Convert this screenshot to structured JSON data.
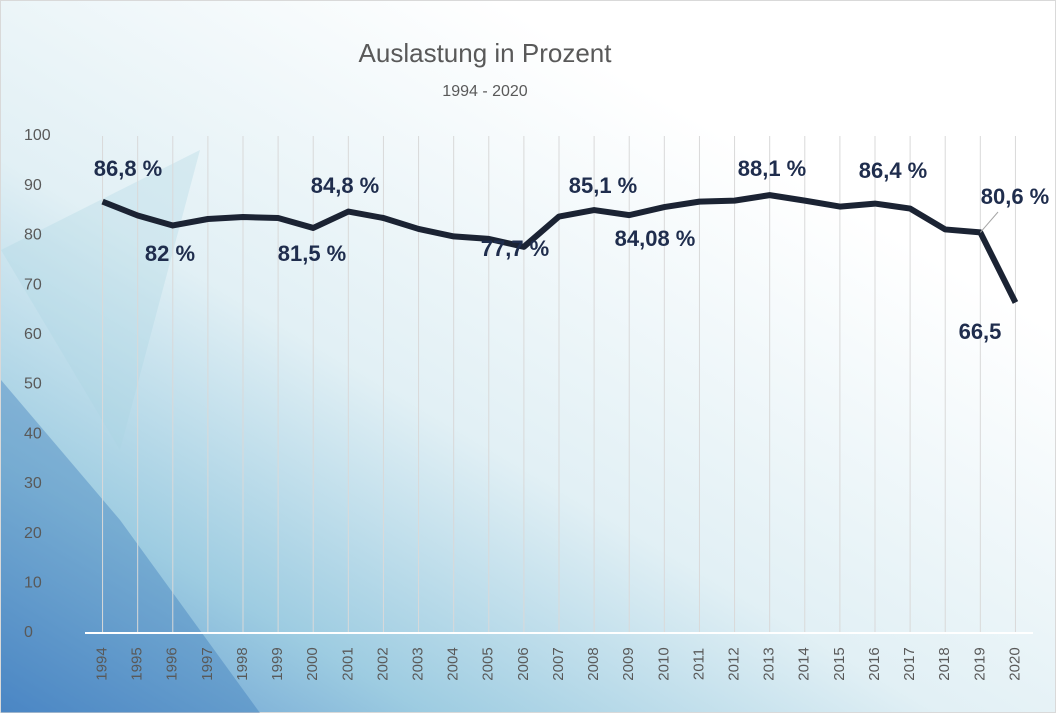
{
  "chart_data": {
    "type": "line",
    "title": "Auslastung in Prozent",
    "subtitle": "1994 - 2020",
    "categories": [
      "1994",
      "1995",
      "1996",
      "1997",
      "1998",
      "1999",
      "2000",
      "2001",
      "2002",
      "2003",
      "2004",
      "2005",
      "2006",
      "2007",
      "2008",
      "2009",
      "2010",
      "2011",
      "2012",
      "2013",
      "2014",
      "2015",
      "2016",
      "2017",
      "2018",
      "2019",
      "2020"
    ],
    "values": [
      86.8,
      84,
      82,
      83.3,
      83.7,
      83.5,
      81.5,
      84.8,
      83.5,
      81.3,
      79.8,
      79.3,
      77.7,
      83.8,
      85.1,
      84.08,
      85.7,
      86.8,
      87,
      88.1,
      87,
      85.8,
      86.4,
      85.4,
      81.2,
      80.6,
      66.5
    ],
    "value_labels": [
      "86,8 %",
      null,
      "82 %",
      null,
      null,
      null,
      "81,5 %",
      "84,8 %",
      null,
      null,
      null,
      null,
      "77,7 %",
      null,
      "85,1 %",
      "84,08 %",
      null,
      null,
      null,
      "88,1 %",
      null,
      null,
      "86,4 %",
      null,
      null,
      "80,6 %",
      "66,5"
    ],
    "color": "#1b2333",
    "ylim": [
      0,
      100
    ],
    "yticks": [
      0,
      10,
      20,
      30,
      40,
      50,
      60,
      70,
      80,
      90,
      100
    ],
    "grid": true
  }
}
